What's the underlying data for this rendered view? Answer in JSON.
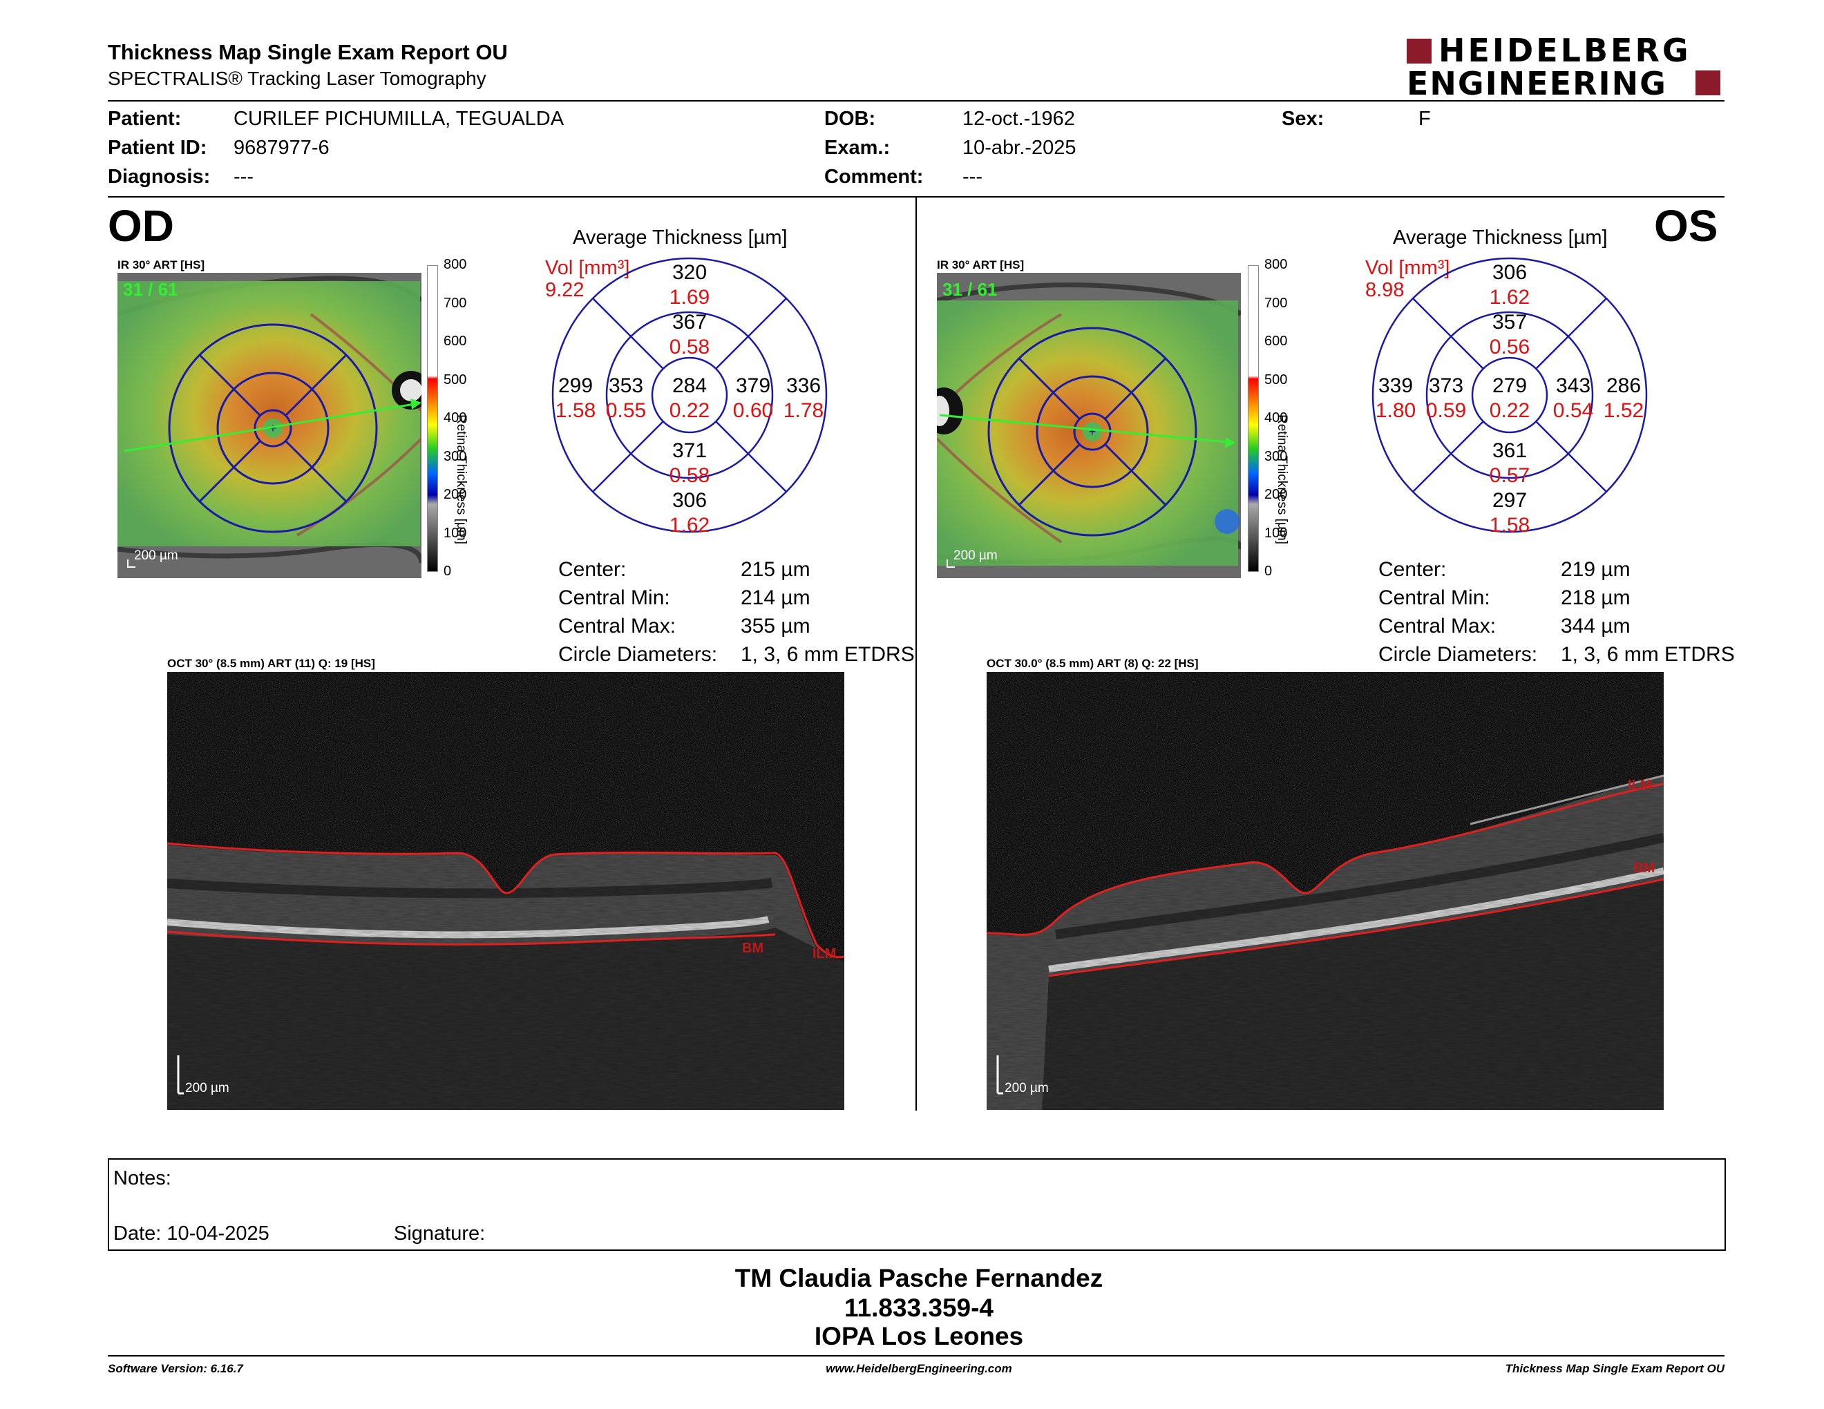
{
  "report": {
    "title": "Thickness Map Single Exam Report OU",
    "subtitle": "SPECTRALIS® Tracking Laser Tomography",
    "brand_line1": "HEIDELBERG",
    "brand_line2": "ENGINEERING",
    "brand_color": "#8b1a2b"
  },
  "patient": {
    "patient_label": "Patient:",
    "patient_value": "CURILEF PICHUMILLA, TEGUALDA",
    "id_label": "Patient ID:",
    "id_value": "9687977-6",
    "diagnosis_label": "Diagnosis:",
    "diagnosis_value": "---",
    "dob_label": "DOB:",
    "dob_value": "12-oct.-1962",
    "exam_label": "Exam.:",
    "exam_value": "10-abr.-2025",
    "comment_label": "Comment:",
    "comment_value": "---",
    "sex_label": "Sex:",
    "sex_value": "F"
  },
  "od": {
    "eye": "OD",
    "ir_caption": "IR 30° ART [HS]",
    "frame": "31 / 61",
    "scale": "200 µm",
    "colorbar_ticks": [
      "800",
      "700",
      "600",
      "500",
      "400",
      "300",
      "200",
      "100",
      "0"
    ],
    "colorbar_title": "Retina Thickness [µm]",
    "avg_title": "Average Thickness [µm]",
    "vol_label": "Vol [mm³]",
    "vol_value": "9.22",
    "grid": {
      "center": {
        "t": "284",
        "v": "0.22"
      },
      "inner_sup": {
        "t": "367",
        "v": "0.58"
      },
      "outer_sup": {
        "t": "320",
        "v": "1.69"
      },
      "inner_inf": {
        "t": "371",
        "v": "0.58"
      },
      "outer_inf": {
        "t": "306",
        "v": "1.62"
      },
      "inner_left": {
        "t": "353",
        "v": "0.55"
      },
      "outer_left": {
        "t": "299",
        "v": "1.58"
      },
      "inner_right": {
        "t": "379",
        "v": "0.60"
      },
      "outer_right": {
        "t": "336",
        "v": "1.78"
      }
    },
    "stats": [
      {
        "label": "Center:",
        "value": "215 µm"
      },
      {
        "label": "Central Min:",
        "value": "214 µm"
      },
      {
        "label": "Central Max:",
        "value": "355 µm"
      },
      {
        "label": "Circle Diameters:",
        "value": "1, 3, 6 mm ETDRS"
      }
    ],
    "oct_caption": "OCT 30° (8.5 mm) ART (11) Q: 19 [HS]",
    "oct_scale": "200 µm",
    "ilm": "ILM",
    "bm": "BM"
  },
  "os": {
    "eye": "OS",
    "ir_caption": "IR 30° ART [HS]",
    "frame": "31 / 61",
    "scale": "200 µm",
    "colorbar_ticks": [
      "800",
      "700",
      "600",
      "500",
      "400",
      "300",
      "200",
      "100",
      "0"
    ],
    "colorbar_title": "Retina Thickness [µm]",
    "avg_title": "Average Thickness [µm]",
    "vol_label": "Vol [mm³]",
    "vol_value": "8.98",
    "grid": {
      "center": {
        "t": "279",
        "v": "0.22"
      },
      "inner_sup": {
        "t": "357",
        "v": "0.56"
      },
      "outer_sup": {
        "t": "306",
        "v": "1.62"
      },
      "inner_inf": {
        "t": "361",
        "v": "0.57"
      },
      "outer_inf": {
        "t": "297",
        "v": "1.58"
      },
      "inner_left": {
        "t": "373",
        "v": "0.59"
      },
      "outer_left": {
        "t": "339",
        "v": "1.80"
      },
      "inner_right": {
        "t": "343",
        "v": "0.54"
      },
      "outer_right": {
        "t": "286",
        "v": "1.52"
      }
    },
    "stats": [
      {
        "label": "Center:",
        "value": "219 µm"
      },
      {
        "label": "Central Min:",
        "value": "218 µm"
      },
      {
        "label": "Central Max:",
        "value": "344 µm"
      },
      {
        "label": "Circle Diameters:",
        "value": "1, 3, 6 mm ETDRS"
      }
    ],
    "oct_caption": "OCT 30.0° (8.5 mm) ART (8) Q: 22 [HS]",
    "oct_scale": "200 µm",
    "ilm": "ILM",
    "bm": "BM"
  },
  "notes": {
    "notes_label": "Notes:",
    "date_label": "Date: 10-04-2025",
    "signature_label": "Signature:"
  },
  "signer": {
    "name": "TM Claudia Pasche Fernandez",
    "id": "11.833.359-4",
    "org": "IOPA Los Leones"
  },
  "footer": {
    "software": "Software Version: 6.16.7",
    "website": "www.HeidelbergEngineering.com",
    "report_name": "Thickness Map Single Exam Report OU"
  },
  "colors": {
    "grid_blue": "#1a1aa6",
    "value_red": "#e01010",
    "vol_red": "#e01010",
    "seg_red": "#e02020",
    "scan_green": "#33ee33"
  }
}
